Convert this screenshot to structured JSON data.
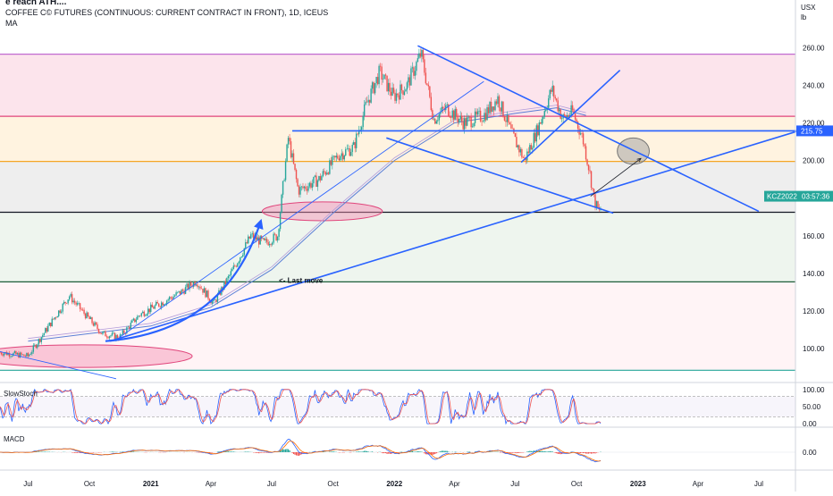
{
  "header": {
    "idea_title": "e reach ATH....",
    "symbol_line": "COFFEE C© FUTURES (CONTINUOUS: CURRENT CONTRACT IN FRONT), 1D, ICEUS",
    "indicator": "MA"
  },
  "price_axis": {
    "currency": "USX",
    "unit": "lb"
  },
  "panes": {
    "stoch_label": "SlowStoch",
    "macd_label": "MACD"
  },
  "tags": {
    "last_price": "215.75",
    "contract": "KCZ2022",
    "countdown": "03:57:36"
  },
  "annotation": "<- Last move",
  "chart_data": {
    "type": "candlestick",
    "interval": "1D",
    "y_axis": {
      "ylim": [
        82,
        272
      ],
      "ticks": [
        100,
        120,
        140,
        160,
        180,
        200,
        220,
        240,
        260
      ]
    },
    "x_axis": {
      "labels": [
        "Jul",
        "Oct",
        "2021",
        "Apr",
        "Jul",
        "Oct",
        "2022",
        "Apr",
        "Jul",
        "Oct",
        "2023",
        "Apr",
        "Jul"
      ],
      "bold_labels": [
        "2021",
        "2022",
        "2023"
      ]
    },
    "price_path": [
      [
        "2020-05-20",
        98
      ],
      [
        "2020-07-01",
        96
      ],
      [
        "2020-08-01",
        112
      ],
      [
        "2020-09-01",
        128
      ],
      [
        "2020-09-20",
        120
      ],
      [
        "2020-10-20",
        108
      ],
      [
        "2020-11-15",
        106
      ],
      [
        "2020-12-15",
        118
      ],
      [
        "2021-01-15",
        124
      ],
      [
        "2021-02-15",
        130
      ],
      [
        "2021-03-10",
        136
      ],
      [
        "2021-04-05",
        124
      ],
      [
        "2021-05-01",
        140
      ],
      [
        "2021-05-31",
        160
      ],
      [
        "2021-06-20",
        156
      ],
      [
        "2021-07-10",
        160
      ],
      [
        "2021-07-26",
        212
      ],
      [
        "2021-08-10",
        184
      ],
      [
        "2021-09-10",
        190
      ],
      [
        "2021-10-10",
        203
      ],
      [
        "2021-11-01",
        207
      ],
      [
        "2021-11-20",
        230
      ],
      [
        "2021-12-10",
        247
      ],
      [
        "2021-12-31",
        234
      ],
      [
        "2022-01-20",
        240
      ],
      [
        "2022-02-10",
        257
      ],
      [
        "2022-03-01",
        222
      ],
      [
        "2022-03-20",
        228
      ],
      [
        "2022-04-15",
        220
      ],
      [
        "2022-05-15",
        224
      ],
      [
        "2022-06-05",
        233
      ],
      [
        "2022-06-25",
        215
      ],
      [
        "2022-07-15",
        200
      ],
      [
        "2022-08-05",
        218
      ],
      [
        "2022-08-25",
        238
      ],
      [
        "2022-09-10",
        222
      ],
      [
        "2022-09-25",
        226
      ],
      [
        "2022-10-10",
        212
      ],
      [
        "2022-10-20",
        195
      ],
      [
        "2022-10-28",
        178
      ],
      [
        "2022-11-05",
        172
      ],
      [
        "2022-11-07",
        176
      ]
    ],
    "moving_average": [
      [
        "2020-07-01",
        104
      ],
      [
        "2020-10-01",
        108
      ],
      [
        "2021-01-01",
        112
      ],
      [
        "2021-04-01",
        122
      ],
      [
        "2021-07-01",
        142
      ],
      [
        "2021-10-01",
        172
      ],
      [
        "2022-01-01",
        200
      ],
      [
        "2022-04-01",
        220
      ],
      [
        "2022-07-01",
        225
      ],
      [
        "2022-09-01",
        228
      ],
      [
        "2022-10-15",
        224
      ]
    ],
    "horizontal_levels": [
      {
        "y": 256.5,
        "color": "#c06ad0"
      },
      {
        "y": 223.5,
        "color": "#e0457b"
      },
      {
        "y": 199.5,
        "color": "#f5a623"
      },
      {
        "y": 172.5,
        "color": "#131722"
      },
      {
        "y": 135.5,
        "color": "#1e5e3a"
      },
      {
        "y": 88.5,
        "color": "#26a69a"
      },
      {
        "y": 215.75,
        "color": "#2962ff"
      }
    ],
    "zones": [
      {
        "from": 223.5,
        "to": 256.5,
        "color": "#fce4ec"
      },
      {
        "from": 199.5,
        "to": 223.5,
        "color": "#fff3e0"
      },
      {
        "from": 172.5,
        "to": 199.5,
        "color": "#eeeeee"
      },
      {
        "from": 135.5,
        "to": 172.5,
        "color": "#eef5ee"
      },
      {
        "from": 88.5,
        "to": 135.5,
        "color": "#fff4f6"
      }
    ],
    "trendlines": [
      {
        "p1": [
          "2021-08-01",
          215.75
        ],
        "p2": [
          "2023-09-01",
          215.75
        ]
      },
      {
        "p1": [
          "2022-02-05",
          261
        ],
        "p2": [
          "2023-07-01",
          173
        ]
      },
      {
        "p1": [
          "2021-12-20",
          212
        ],
        "p2": [
          "2022-11-25",
          172
        ]
      },
      {
        "p1": [
          "2022-07-10",
          199
        ],
        "p2": [
          "2022-12-05",
          248
        ]
      },
      {
        "p1": [
          "2020-11-01",
          104
        ],
        "p2": [
          "2023-09-01",
          216
        ]
      },
      {
        "p1": [
          "2020-11-15",
          106
        ],
        "p2": [
          "2022-05-15",
          242
        ]
      },
      {
        "p1": [
          "2020-05-01",
          100
        ],
        "p2": [
          "2020-11-10",
          84
        ]
      }
    ],
    "curved_arrow": {
      "from": [
        "2020-10-25",
        104
      ],
      "to": [
        "2021-06-15",
        168
      ]
    },
    "thin_arrow": {
      "from": [
        "2022-10-22",
        181
      ],
      "to": [
        "2023-01-05",
        201
      ]
    },
    "ellipses": [
      {
        "center": [
          "2021-09-15",
          173
        ],
        "rx_days": 90,
        "ry": 5,
        "color": "#f48fb1"
      },
      {
        "center": [
          "2020-09-20",
          96
        ],
        "rx_days": 165,
        "ry": 6,
        "color": "#f48fb1"
      },
      {
        "center": [
          "2022-12-25",
          205
        ],
        "rx_days": 24,
        "ry": 7,
        "color": "#9e9e9e"
      }
    ],
    "annotation_at": [
      "2021-07-12",
      135
    ],
    "stochastic": {
      "ylim": [
        -5,
        110
      ],
      "ticks": [
        100,
        50,
        0
      ],
      "tick_labels": [
        "100.00",
        "50.00",
        "0.00"
      ],
      "bands": [
        80,
        20
      ]
    },
    "macd": {
      "ticks": [
        0
      ],
      "tick_labels": [
        "0.00"
      ]
    }
  }
}
